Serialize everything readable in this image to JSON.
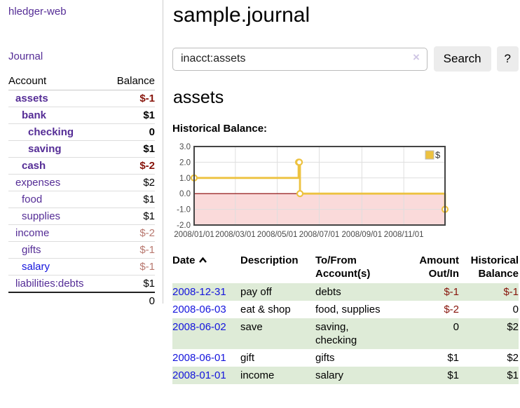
{
  "app": {
    "title": "hledger-web"
  },
  "sidebar": {
    "journal_link": "Journal",
    "table": {
      "account_header": "Account",
      "balance_header": "Balance",
      "rows": [
        {
          "account": "assets",
          "balance": "$-1",
          "level": 1,
          "bold": true,
          "neg": "dark",
          "link": "purple"
        },
        {
          "account": "bank",
          "balance": "$1",
          "level": 2,
          "bold": true,
          "neg": "none",
          "link": "purple"
        },
        {
          "account": "checking",
          "balance": "0",
          "level": 3,
          "bold": true,
          "neg": "none",
          "link": "purple"
        },
        {
          "account": "saving",
          "balance": "$1",
          "level": 3,
          "bold": true,
          "neg": "none",
          "link": "purple"
        },
        {
          "account": "cash",
          "balance": "$-2",
          "level": 2,
          "bold": true,
          "neg": "dark",
          "link": "purple"
        },
        {
          "account": "expenses",
          "balance": "$2",
          "level": 1,
          "bold": false,
          "neg": "none",
          "link": "purple"
        },
        {
          "account": "food",
          "balance": "$1",
          "level": 2,
          "bold": false,
          "neg": "none",
          "link": "purple"
        },
        {
          "account": "supplies",
          "balance": "$1",
          "level": 2,
          "bold": false,
          "neg": "none",
          "link": "purple"
        },
        {
          "account": "income",
          "balance": "$-2",
          "level": 1,
          "bold": false,
          "neg": "light",
          "link": "purple"
        },
        {
          "account": "gifts",
          "balance": "$-1",
          "level": 2,
          "bold": false,
          "neg": "light",
          "link": "purple"
        },
        {
          "account": "salary",
          "balance": "$-1",
          "level": 2,
          "bold": false,
          "neg": "light",
          "link": "blue"
        },
        {
          "account": "liabilities:debts",
          "balance": "$1",
          "level": 1,
          "bold": false,
          "neg": "none",
          "link": "purple"
        }
      ],
      "total": "0"
    }
  },
  "header": {
    "title": "sample.journal"
  },
  "search": {
    "value": "inacct:assets",
    "clear_icon": "×",
    "button_label": "Search",
    "help_label": "?"
  },
  "account_page": {
    "title": "assets",
    "chart_label": "Historical Balance:"
  },
  "chart_data": {
    "type": "line",
    "title": "Historical Balance",
    "step": true,
    "series": [
      {
        "name": "$",
        "points": [
          [
            "2008-01-01",
            1
          ],
          [
            "2008-06-01",
            2
          ],
          [
            "2008-06-02",
            2
          ],
          [
            "2008-06-03",
            0
          ],
          [
            "2008-12-31",
            -1
          ]
        ]
      }
    ],
    "x_domain": [
      "2008-01-01",
      "2008-12-31"
    ],
    "x_ticks": [
      {
        "date": "2008-01-01",
        "label": "2008/01/01"
      },
      {
        "date": "2008-03-01",
        "label": "2008/03/01"
      },
      {
        "date": "2008-05-01",
        "label": "2008/05/01"
      },
      {
        "date": "2008-07-01",
        "label": "2008/07/01"
      },
      {
        "date": "2008-09-01",
        "label": "2008/09/01"
      },
      {
        "date": "2008-11-01",
        "label": "2008/11/01"
      }
    ],
    "y_ticks": [
      3,
      2,
      1,
      0,
      -1,
      -2
    ],
    "y_range": [
      -2,
      3
    ],
    "legend": {
      "label": "$",
      "position": "top-right"
    },
    "grid": true,
    "negative_region_below": 0
  },
  "register": {
    "headers": {
      "date": "Date",
      "description": "Description",
      "tofrom": [
        "To/From",
        "Account(s)"
      ],
      "amount": [
        "Amount",
        "Out/In"
      ],
      "balance": [
        "Historical",
        "Balance"
      ]
    },
    "sort": {
      "column": "date",
      "direction": "asc",
      "icon": "chevron-up"
    },
    "rows": [
      {
        "date": "2008-12-31",
        "description": "pay off",
        "accounts": [
          "debts"
        ],
        "amount": "$-1",
        "amount_neg": true,
        "balance": "$-1",
        "balance_neg": true
      },
      {
        "date": "2008-06-03",
        "description": "eat & shop",
        "accounts": [
          "food",
          "supplies"
        ],
        "amount": "$-2",
        "amount_neg": true,
        "balance": "0",
        "balance_neg": false
      },
      {
        "date": "2008-06-02",
        "description": "save",
        "accounts": [
          "saving",
          "checking"
        ],
        "amount": "0",
        "amount_neg": false,
        "balance": "$2",
        "balance_neg": false
      },
      {
        "date": "2008-06-01",
        "description": "gift",
        "accounts": [
          "gifts"
        ],
        "amount": "$1",
        "amount_neg": false,
        "balance": "$2",
        "balance_neg": false
      },
      {
        "date": "2008-01-01",
        "description": "income",
        "accounts": [
          "salary"
        ],
        "amount": "$1",
        "amount_neg": false,
        "balance": "$1",
        "balance_neg": false
      }
    ]
  },
  "colors": {
    "purple_link": "#552D96",
    "blue_link": "#1414DD",
    "negative_dark": "#87140B",
    "negative_light": "#B8786F",
    "row_green": "#DEEBD7",
    "chart_line": "#EDC240",
    "chart_negative_region": "#FADADA",
    "chart_zero_line": "#8B0000",
    "chart_border": "#444444",
    "chart_grid": "#DEDEDE",
    "axis_text": "#4A4A4A"
  }
}
